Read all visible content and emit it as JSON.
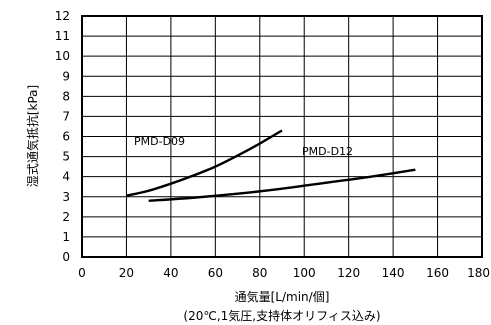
{
  "chart_data": {
    "type": "line",
    "xlabel": "通気量[L/min/個]",
    "xlabel_note": "(20℃,1気圧,支持体オリフィス込み)",
    "ylabel": "湿式通気抵抗[kPa]",
    "xlim": [
      0,
      180
    ],
    "ylim": [
      0,
      12
    ],
    "x_ticks": [
      0,
      20,
      40,
      60,
      80,
      100,
      120,
      140,
      160,
      180
    ],
    "y_ticks": [
      0,
      1,
      2,
      3,
      4,
      5,
      6,
      7,
      8,
      9,
      10,
      11,
      12
    ],
    "x_tick_labels": [
      "0",
      "20",
      "40",
      "60",
      "80",
      "100",
      "120",
      "140",
      "160",
      "180"
    ],
    "y_tick_labels": [
      "0",
      "1",
      "2",
      "3",
      "4",
      "5",
      "6",
      "7",
      "8",
      "9",
      "10",
      "11",
      "12"
    ],
    "grid": true,
    "series": [
      {
        "name": "PMD-D09",
        "x": [
          20,
          30,
          40,
          50,
          60,
          70,
          80,
          90
        ],
        "y": [
          3.05,
          3.3,
          3.65,
          4.05,
          4.5,
          5.05,
          5.65,
          6.3
        ]
      },
      {
        "name": "PMD-D12",
        "x": [
          30,
          50,
          70,
          90,
          110,
          130,
          150
        ],
        "y": [
          2.8,
          2.95,
          3.15,
          3.4,
          3.7,
          4.0,
          4.35
        ]
      }
    ],
    "series_colors": [
      "#000000",
      "#000000"
    ]
  }
}
